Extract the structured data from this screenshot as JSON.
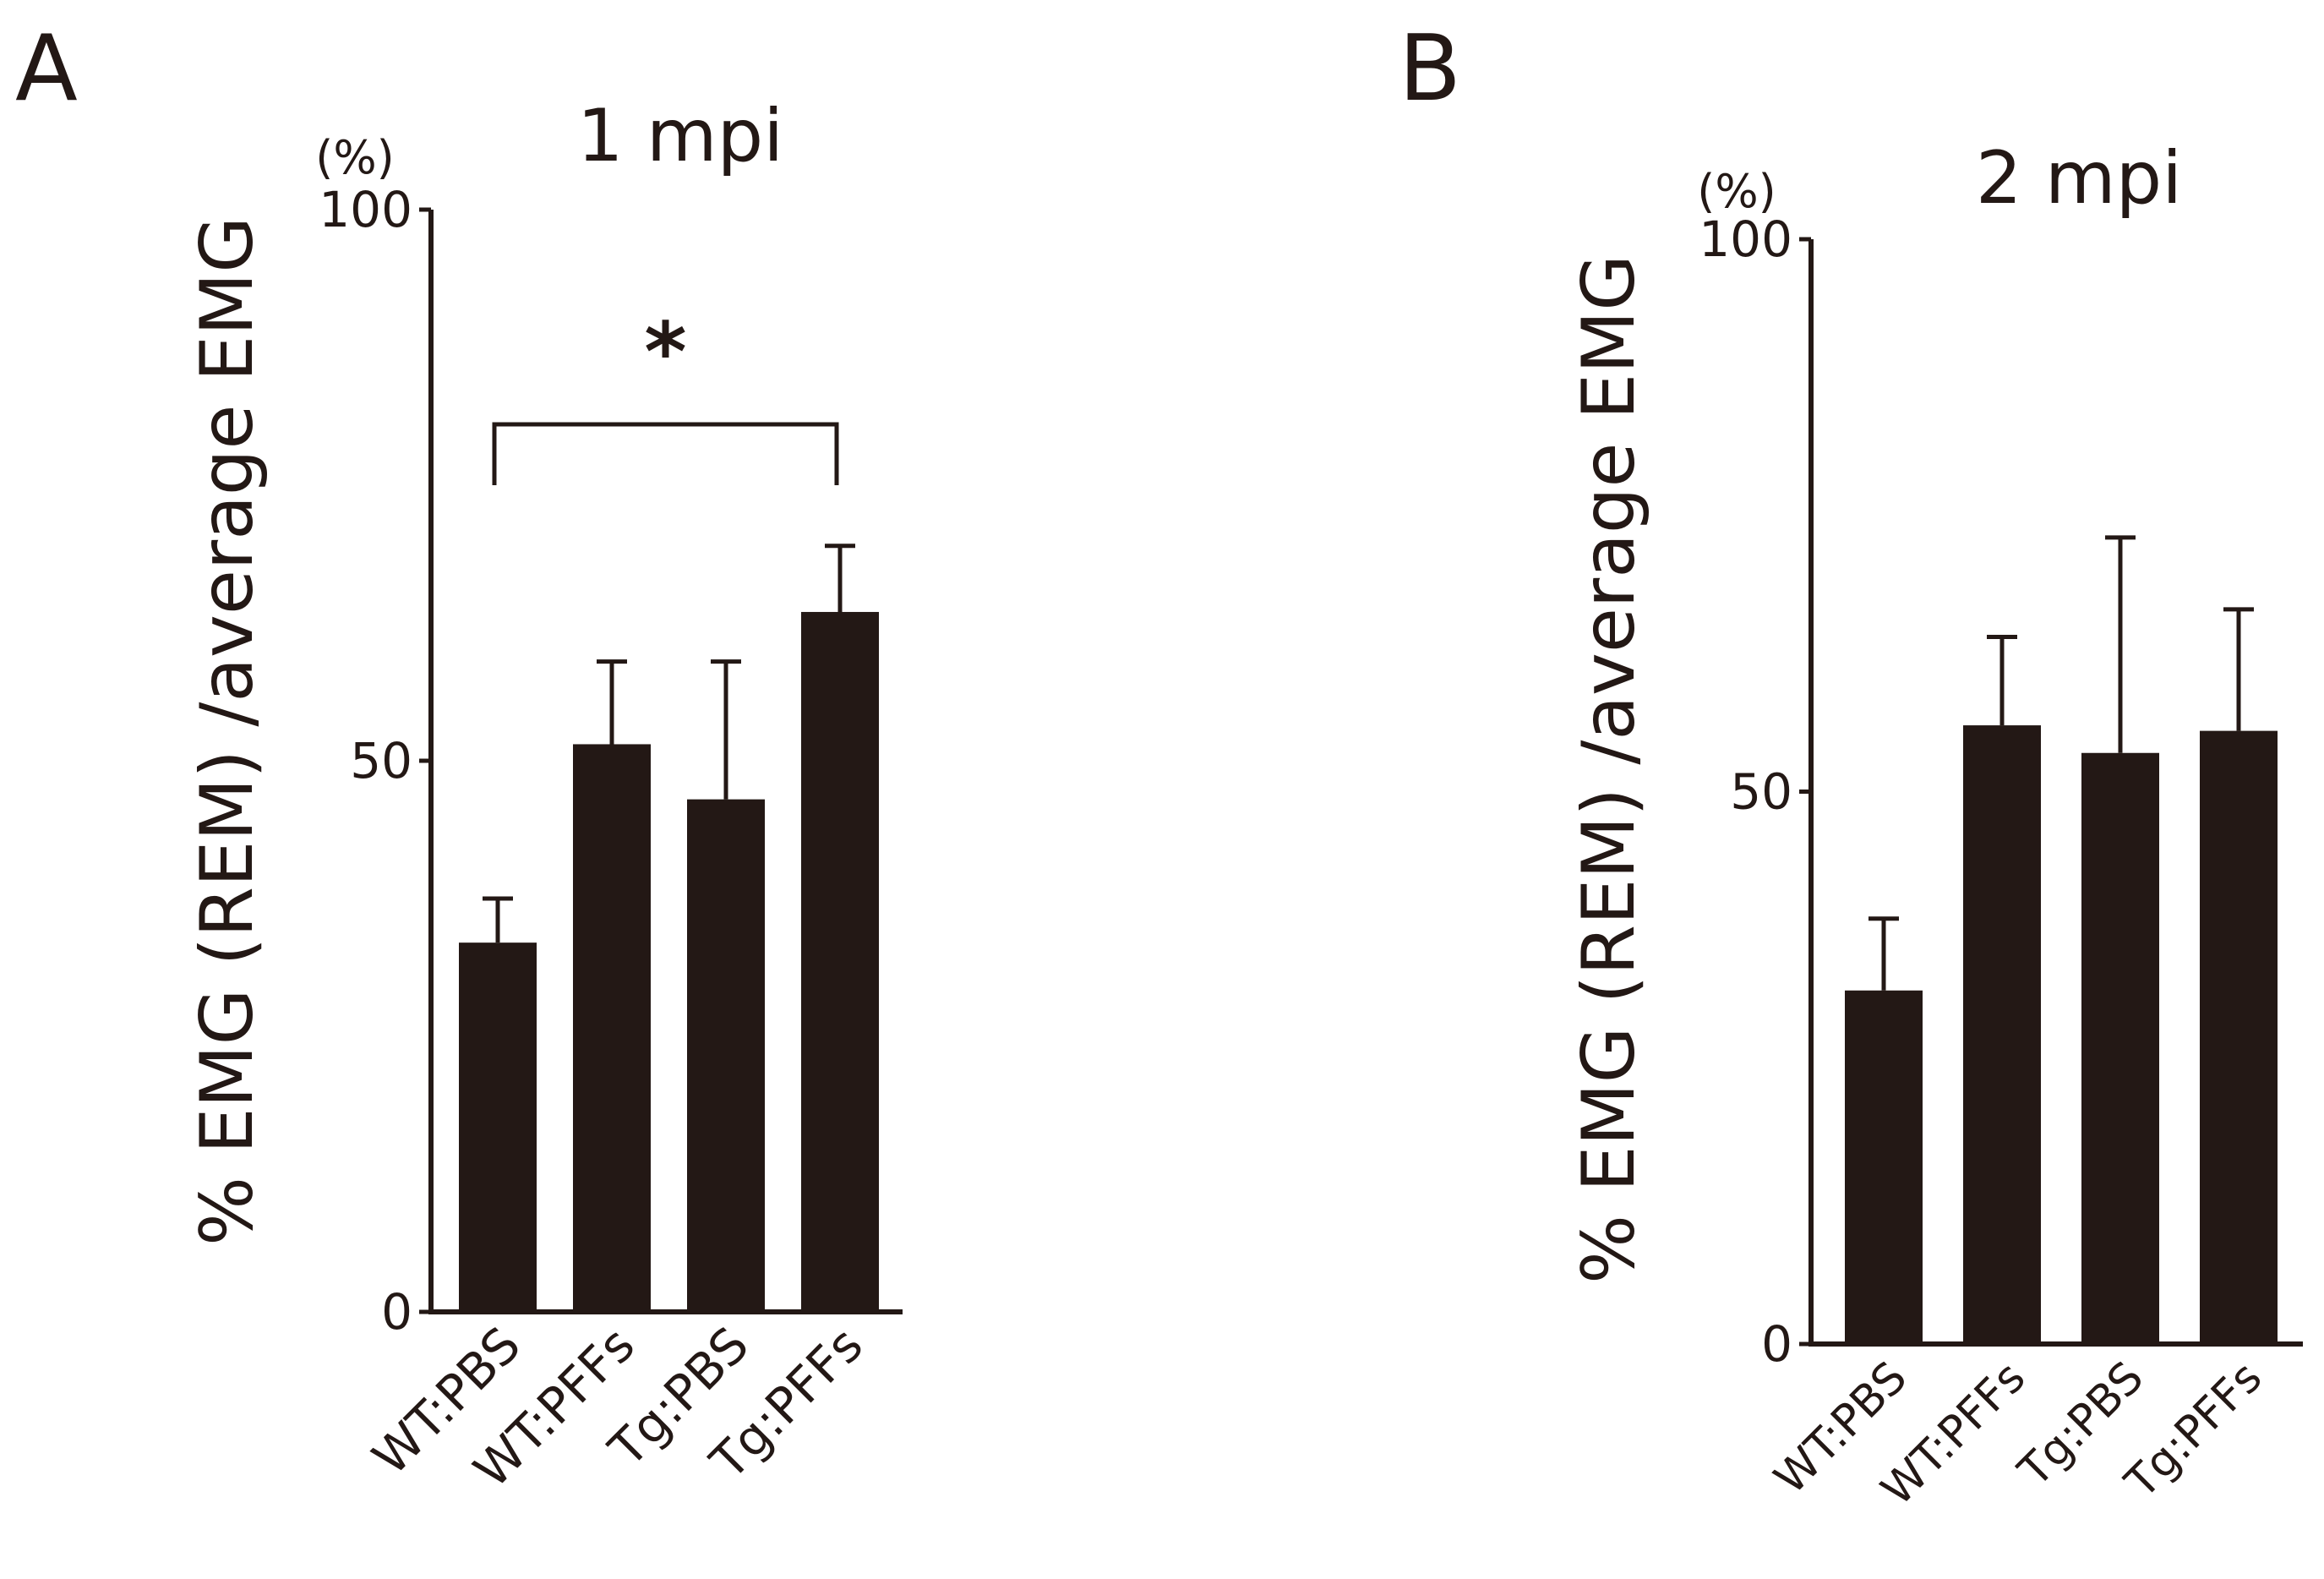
{
  "chart_data": [
    {
      "panel_label": "A",
      "type": "bar",
      "title": "1 mpi",
      "unit_label": "(%)",
      "ylabel": "% EMG (REM) /average EMG",
      "xlabel": "",
      "categories": [
        "WT:PBS",
        "WT:PFFs",
        "Tg:PBS",
        "Tg:PFFs"
      ],
      "values": [
        33.5,
        51.5,
        46.5,
        63.5
      ],
      "errors": [
        4,
        7.5,
        12.5,
        6
      ],
      "ylim": [
        0,
        100
      ],
      "yticks": [
        "0",
        "50",
        "100"
      ],
      "significance": {
        "from": 0,
        "to": 3,
        "label": "*"
      }
    },
    {
      "panel_label": "B",
      "type": "bar",
      "title": "2 mpi",
      "unit_label": "(%)",
      "ylabel": "% EMG (REM) /average EMG",
      "xlabel": "",
      "categories": [
        "WT:PBS",
        "WT:PFFs",
        "Tg:PBS",
        "Tg:PFFs"
      ],
      "values": [
        32,
        56,
        53.5,
        55.5
      ],
      "errors": [
        6.5,
        8,
        19.5,
        11
      ],
      "ylim": [
        0,
        100
      ],
      "yticks": [
        "0",
        "50",
        "100"
      ]
    }
  ],
  "colors": {
    "bar": "#231815",
    "axis": "#231815",
    "text": "#231815"
  }
}
